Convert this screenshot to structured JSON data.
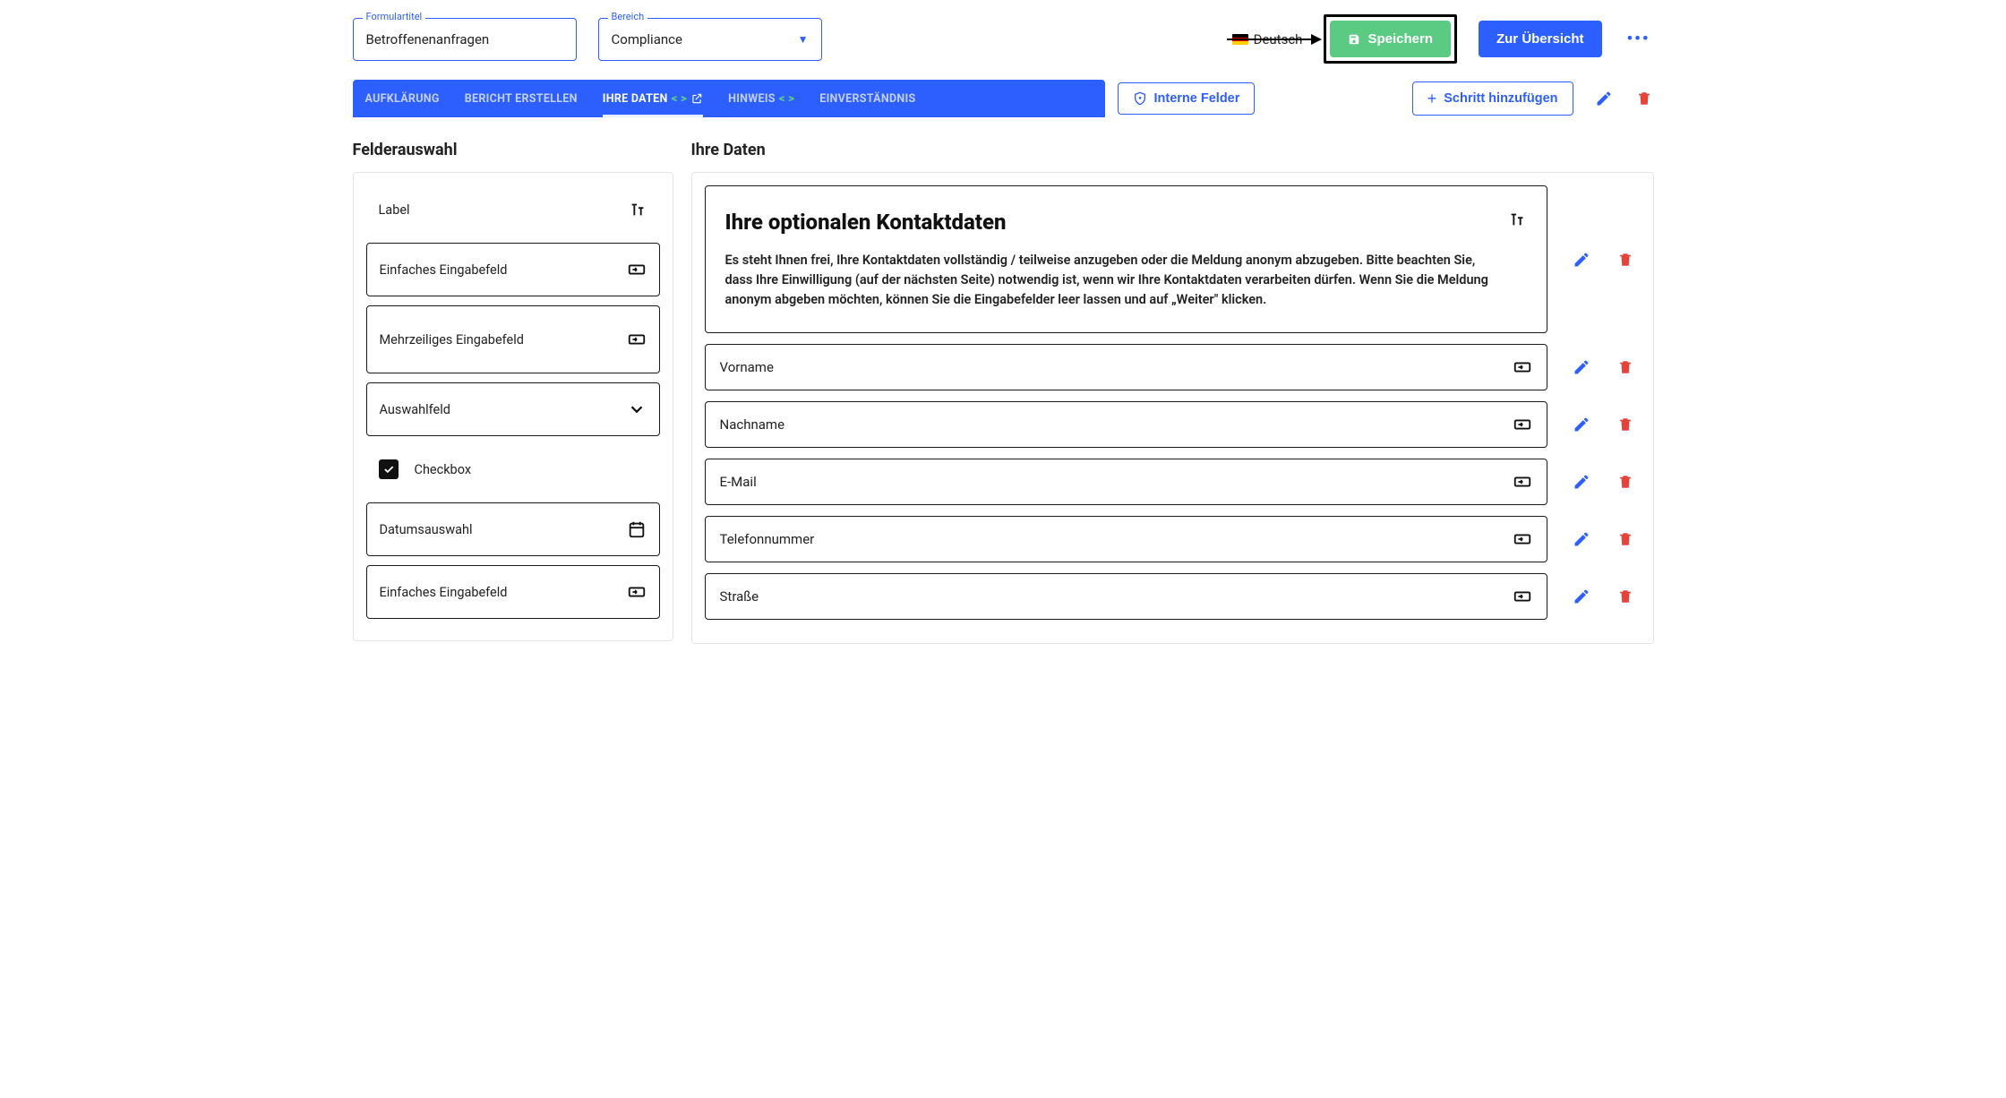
{
  "colors": {
    "primary": "#2d5fff",
    "success": "#5bcb84",
    "danger": "#e6433a",
    "text": "#1a1a1a",
    "border": "#e1e4ea"
  },
  "topbar": {
    "formTitleLabel": "Formulartitel",
    "formTitleValue": "Betroffenenanfragen",
    "areaLabel": "Bereich",
    "areaValue": "Compliance",
    "language": "Deutsch",
    "saveLabel": "Speichern",
    "overviewLabel": "Zur Übersicht"
  },
  "tabs": {
    "items": [
      {
        "label": "AUFKLÄRUNG",
        "active": false,
        "hasCode": false,
        "hasExt": false
      },
      {
        "label": "BERICHT ERSTELLEN",
        "active": false,
        "hasCode": false,
        "hasExt": false
      },
      {
        "label": "IHRE DATEN",
        "active": true,
        "hasCode": true,
        "hasExt": true
      },
      {
        "label": "HINWEIS",
        "active": false,
        "hasCode": true,
        "hasExt": false
      },
      {
        "label": "EINVERSTÄNDNIS",
        "active": false,
        "hasCode": false,
        "hasExt": false
      }
    ],
    "internalFields": "Interne Felder",
    "addStep": "Schritt hinzufügen"
  },
  "leftPanel": {
    "title": "Felderauswahl",
    "items": [
      {
        "label": "Label",
        "icon": "text",
        "border": false,
        "tall": false
      },
      {
        "label": "Einfaches Eingabefeld",
        "icon": "input",
        "border": true,
        "tall": false
      },
      {
        "label": "Mehrzeiliges Eingabefeld",
        "icon": "input",
        "border": true,
        "tall": true
      },
      {
        "label": "Auswahlfeld",
        "icon": "chevron",
        "border": true,
        "tall": false
      },
      {
        "label": "Checkbox",
        "icon": "checkbox",
        "border": false,
        "tall": false
      },
      {
        "label": "Datumsauswahl",
        "icon": "calendar",
        "border": true,
        "tall": false
      },
      {
        "label": "Einfaches Eingabefeld",
        "icon": "input",
        "border": true,
        "tall": false
      }
    ]
  },
  "rightPanel": {
    "title": "Ihre Daten",
    "intro": {
      "heading": "Ihre optionalen Kontaktdaten",
      "body": "Es steht Ihnen frei, Ihre Kontaktdaten vollständig / teilweise anzugeben oder die Meldung anonym abzugeben. Bitte beachten Sie, dass Ihre Einwilligung (auf der nächsten Seite) notwendig ist, wenn wir Ihre Kontaktdaten verarbeiten dürfen. Wenn Sie die Meldung anonym abgeben möchten, können Sie die Eingabefelder leer lassen und auf „Weiter\" klicken."
    },
    "fields": [
      {
        "label": "Vorname"
      },
      {
        "label": "Nachname"
      },
      {
        "label": "E-Mail"
      },
      {
        "label": "Telefonnummer"
      },
      {
        "label": "Straße"
      }
    ]
  }
}
